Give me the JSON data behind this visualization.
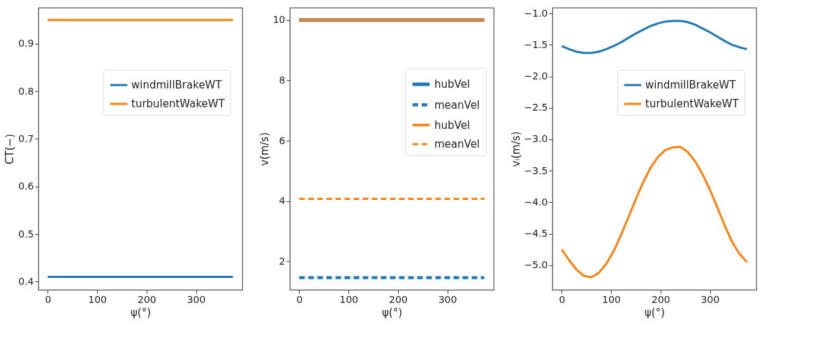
{
  "chart_data": [
    {
      "type": "line",
      "xlabel": "ψ(°)",
      "ylabel": "CT(−)",
      "xlim": [
        -19,
        394
      ],
      "xticks": [
        0,
        100,
        200,
        300
      ],
      "ylim": [
        0.383,
        0.976
      ],
      "yticks": [
        {
          "value": 0.4,
          "label": "0.4"
        },
        {
          "value": 0.5,
          "label": "0.5"
        },
        {
          "value": 0.6,
          "label": "0.6"
        },
        {
          "value": 0.7,
          "label": "0.7"
        },
        {
          "value": 0.8,
          "label": "0.8"
        },
        {
          "value": 0.9,
          "label": "0.9"
        }
      ],
      "legend": "right",
      "x": [
        0,
        15,
        30,
        45,
        60,
        75,
        90,
        105,
        120,
        135,
        150,
        165,
        180,
        195,
        210,
        225,
        240,
        255,
        270,
        285,
        300,
        315,
        330,
        345,
        360,
        375
      ],
      "series": [
        {
          "name": "windmillBrakeWT",
          "color": "#1f77b4",
          "line_style": "solid",
          "values": [
            0.41,
            0.41,
            0.41,
            0.41,
            0.41,
            0.41,
            0.41,
            0.41,
            0.41,
            0.41,
            0.41,
            0.41,
            0.41,
            0.41,
            0.41,
            0.41,
            0.41,
            0.41,
            0.41,
            0.41,
            0.41,
            0.41,
            0.41,
            0.41,
            0.41,
            0.41
          ]
        },
        {
          "name": "turbulentWakeWT",
          "color": "#ff7f0e",
          "line_style": "solid",
          "values": [
            0.95,
            0.95,
            0.95,
            0.95,
            0.95,
            0.95,
            0.95,
            0.95,
            0.95,
            0.95,
            0.95,
            0.95,
            0.95,
            0.95,
            0.95,
            0.95,
            0.95,
            0.95,
            0.95,
            0.95,
            0.95,
            0.95,
            0.95,
            0.95,
            0.95,
            0.95
          ]
        }
      ]
    },
    {
      "type": "line",
      "xlabel": "ψ(°)",
      "ylabel": "v(m/s)",
      "xlim": [
        -19,
        394
      ],
      "xticks": [
        0,
        100,
        200,
        300
      ],
      "ylim": [
        1.06,
        10.41
      ],
      "yticks": [
        2,
        4,
        6,
        8,
        10
      ],
      "legend": "top right",
      "x": [
        0,
        15,
        30,
        45,
        60,
        75,
        90,
        105,
        120,
        135,
        150,
        165,
        180,
        195,
        210,
        225,
        240,
        255,
        270,
        285,
        300,
        315,
        330,
        345,
        360,
        375
      ],
      "series": [
        {
          "name": "hubVel",
          "color": "#1f77b4",
          "line_style": "solid",
          "values": [
            10,
            10,
            10,
            10,
            10,
            10,
            10,
            10,
            10,
            10,
            10,
            10,
            10,
            10,
            10,
            10,
            10,
            10,
            10,
            10,
            10,
            10,
            10,
            10,
            10,
            10
          ]
        },
        {
          "name": "meanVel",
          "color": "#1f77b4",
          "line_style": "dashed",
          "values": [
            1.46,
            1.46,
            1.46,
            1.46,
            1.46,
            1.46,
            1.46,
            1.46,
            1.46,
            1.46,
            1.46,
            1.46,
            1.46,
            1.46,
            1.46,
            1.46,
            1.46,
            1.46,
            1.46,
            1.46,
            1.46,
            1.46,
            1.46,
            1.46,
            1.46,
            1.46
          ]
        },
        {
          "name": "hubVel",
          "color": "#ff7f0e",
          "line_style": "solid",
          "values": [
            10,
            10,
            10,
            10,
            10,
            10,
            10,
            10,
            10,
            10,
            10,
            10,
            10,
            10,
            10,
            10,
            10,
            10,
            10,
            10,
            10,
            10,
            10,
            10,
            10,
            10
          ]
        },
        {
          "name": "meanVel",
          "color": "#ff7f0e",
          "line_style": "dashed",
          "values": [
            4.07,
            4.07,
            4.07,
            4.07,
            4.07,
            4.07,
            4.07,
            4.07,
            4.07,
            4.07,
            4.07,
            4.07,
            4.07,
            4.07,
            4.07,
            4.07,
            4.07,
            4.07,
            4.07,
            4.07,
            4.07,
            4.07,
            4.07,
            4.07,
            4.07,
            4.07
          ]
        }
      ]
    },
    {
      "type": "line",
      "xlabel": "ψ(°)",
      "ylabel": "vᵢ(m/s)",
      "xlim": [
        -19,
        394
      ],
      "xticks": [
        0,
        100,
        200,
        300
      ],
      "ylim": [
        -5.39,
        -0.91
      ],
      "yticks": [
        {
          "value": -1.0,
          "label": "−1.0"
        },
        {
          "value": -1.5,
          "label": "−1.5"
        },
        {
          "value": -2.0,
          "label": "−2.0"
        },
        {
          "value": -2.5,
          "label": "−2.5"
        },
        {
          "value": -3.0,
          "label": "−3.0"
        },
        {
          "value": -3.5,
          "label": "−3.5"
        },
        {
          "value": -4.0,
          "label": "−4.0"
        },
        {
          "value": -4.5,
          "label": "−4.5"
        },
        {
          "value": -5.0,
          "label": "−5.0"
        }
      ],
      "legend": "right",
      "x": [
        0,
        15,
        30,
        45,
        60,
        75,
        90,
        105,
        120,
        135,
        150,
        165,
        180,
        195,
        210,
        225,
        240,
        255,
        270,
        285,
        300,
        315,
        330,
        345,
        360,
        375
      ],
      "series": [
        {
          "name": "windmillBrakeWT",
          "color": "#1f77b4",
          "line_style": "solid",
          "values": [
            -1.52,
            -1.57,
            -1.61,
            -1.63,
            -1.63,
            -1.61,
            -1.57,
            -1.52,
            -1.46,
            -1.39,
            -1.32,
            -1.26,
            -1.2,
            -1.16,
            -1.13,
            -1.12,
            -1.12,
            -1.14,
            -1.18,
            -1.24,
            -1.3,
            -1.37,
            -1.44,
            -1.5,
            -1.54,
            -1.57
          ]
        },
        {
          "name": "turbulentWakeWT",
          "color": "#ff7f0e",
          "line_style": "solid",
          "values": [
            -4.75,
            -4.92,
            -5.07,
            -5.17,
            -5.19,
            -5.12,
            -4.98,
            -4.78,
            -4.52,
            -4.24,
            -3.95,
            -3.68,
            -3.45,
            -3.28,
            -3.17,
            -3.13,
            -3.12,
            -3.2,
            -3.35,
            -3.55,
            -3.8,
            -4.08,
            -4.37,
            -4.63,
            -4.82,
            -4.95
          ]
        }
      ]
    }
  ]
}
